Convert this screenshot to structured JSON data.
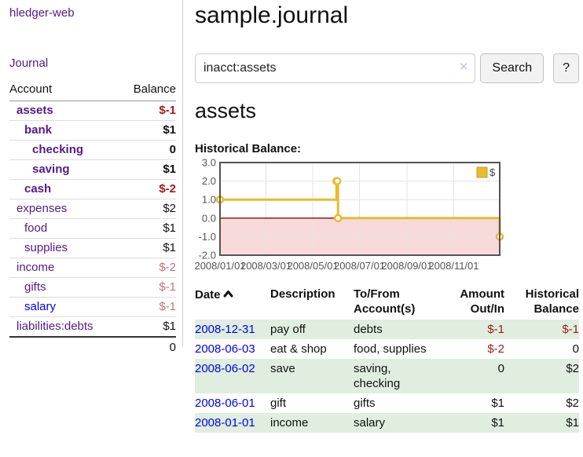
{
  "app": {
    "brand": "hledger-web"
  },
  "sidebar": {
    "journal_label": "Journal",
    "accounts_table": {
      "header_account": "Account",
      "header_balance": "Balance",
      "rows": [
        {
          "name": "assets",
          "balance": "$-1"
        },
        {
          "name": "bank",
          "balance": "$1"
        },
        {
          "name": "checking",
          "balance": "0"
        },
        {
          "name": "saving",
          "balance": "$1"
        },
        {
          "name": "cash",
          "balance": "$-2"
        },
        {
          "name": "expenses",
          "balance": "$2"
        },
        {
          "name": "food",
          "balance": "$1"
        },
        {
          "name": "supplies",
          "balance": "$1"
        },
        {
          "name": "income",
          "balance": "$-2"
        },
        {
          "name": "gifts",
          "balance": "$-1"
        },
        {
          "name": "salary",
          "balance": "$-1"
        },
        {
          "name": "liabilities:debts",
          "balance": "$1"
        }
      ],
      "total": "0"
    }
  },
  "main": {
    "title": "sample.journal",
    "search": {
      "value": "inacct:assets",
      "clear_icon": "✕",
      "button_label": "Search",
      "help_label": "?"
    },
    "account_heading": "assets",
    "chart_label": "Historical Balance:"
  },
  "chart_data": {
    "type": "line",
    "style": "step",
    "title": "Historical Balance",
    "legend": [
      {
        "label": "$",
        "color": "#e8bb31"
      }
    ],
    "legend_position": "top-right",
    "grid": true,
    "x_range": [
      "2008-01-01",
      "2008-12-31"
    ],
    "ylim": [
      -2,
      3
    ],
    "y_ticks": [
      3.0,
      2.0,
      1.0,
      0.0,
      -1.0,
      -2.0
    ],
    "x_ticks": [
      "2008/01/01",
      "2008/03/01",
      "2008/05/01",
      "2008/07/01",
      "2008/09/01",
      "2008/11/01"
    ],
    "series": [
      {
        "name": "$",
        "points": [
          {
            "x": "2008-01-01",
            "y": 1
          },
          {
            "x": "2008-06-01",
            "y": 2
          },
          {
            "x": "2008-06-02",
            "y": 2
          },
          {
            "x": "2008-06-03",
            "y": 0
          },
          {
            "x": "2008-12-31",
            "y": -1
          }
        ]
      }
    ],
    "negative_region_shaded": true
  },
  "register": {
    "headers": {
      "date": "Date",
      "description": "Description",
      "accounts": "To/From Account(s)",
      "amount": "Amount Out/In",
      "balance": "Historical Balance"
    },
    "rows": [
      {
        "date": "2008-12-31",
        "description": "pay off",
        "accounts": "debts",
        "amount": "$-1",
        "balance": "$-1"
      },
      {
        "date": "2008-06-03",
        "description": "eat & shop",
        "accounts": "food, supplies",
        "amount": "$-2",
        "balance": "0"
      },
      {
        "date": "2008-06-02",
        "description": "save",
        "accounts": "saving, checking",
        "amount": "0",
        "balance": "$2"
      },
      {
        "date": "2008-06-01",
        "description": "gift",
        "accounts": "gifts",
        "amount": "$1",
        "balance": "$2"
      },
      {
        "date": "2008-01-01",
        "description": "income",
        "accounts": "salary",
        "amount": "$1",
        "balance": "$1"
      }
    ]
  },
  "colors": {
    "link_purple": "#551a8b",
    "link_blue": "#0000ee",
    "negative_strong": "#9d1c1c",
    "negative_muted": "#bb7878",
    "row_stripe_green": "#dfeedf",
    "chart_line_gold": "#e8bb31",
    "chart_marker_fill": "#ffffff",
    "chart_fill_pink": "#f9dada",
    "chart_zero_line": "#8b1a1a",
    "chart_border": "#545454",
    "chart_grid": "#e4e4e4",
    "chart_tick_text": "#545454"
  }
}
